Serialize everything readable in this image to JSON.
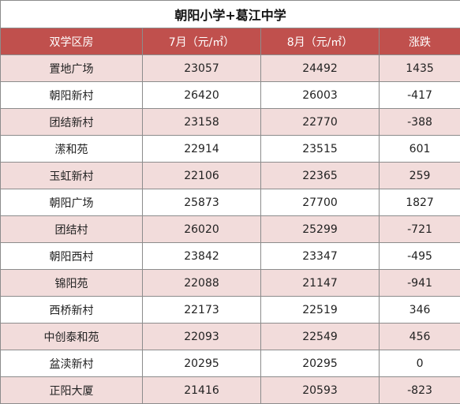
{
  "title": "朝阳小学+葛江中学",
  "headers": [
    "双学区房",
    "7月（元/㎡）",
    "8月（元/㎡）",
    "涨跌"
  ],
  "rows": [
    {
      "name": "置地广场",
      "jul": "23057",
      "aug": "24492",
      "change": "1435"
    },
    {
      "name": "朝阳新村",
      "jul": "26420",
      "aug": "26003",
      "change": "-417"
    },
    {
      "name": "团结新村",
      "jul": "23158",
      "aug": "22770",
      "change": "-388"
    },
    {
      "name": "潆和苑",
      "jul": "22914",
      "aug": "23515",
      "change": "601"
    },
    {
      "name": "玉虹新村",
      "jul": "22106",
      "aug": "22365",
      "change": "259"
    },
    {
      "name": "朝阳广场",
      "jul": "25873",
      "aug": "27700",
      "change": "1827"
    },
    {
      "name": "团结村",
      "jul": "26020",
      "aug": "25299",
      "change": "-721"
    },
    {
      "name": "朝阳西村",
      "jul": "23842",
      "aug": "23347",
      "change": "-495"
    },
    {
      "name": "锦阳苑",
      "jul": "22088",
      "aug": "21147",
      "change": "-941"
    },
    {
      "name": "西桥新村",
      "jul": "22173",
      "aug": "22519",
      "change": "346"
    },
    {
      "name": "中创泰和苑",
      "jul": "22093",
      "aug": "22549",
      "change": "456"
    },
    {
      "name": "盆渎新村",
      "jul": "20295",
      "aug": "20295",
      "change": "0"
    },
    {
      "name": "正阳大厦",
      "jul": "21416",
      "aug": "20593",
      "change": "-823"
    }
  ],
  "colors": {
    "header_bg": "#c0504d",
    "header_text": "#ffffff",
    "stripe": "#f2dcdb",
    "border": "#8c8c8c"
  }
}
